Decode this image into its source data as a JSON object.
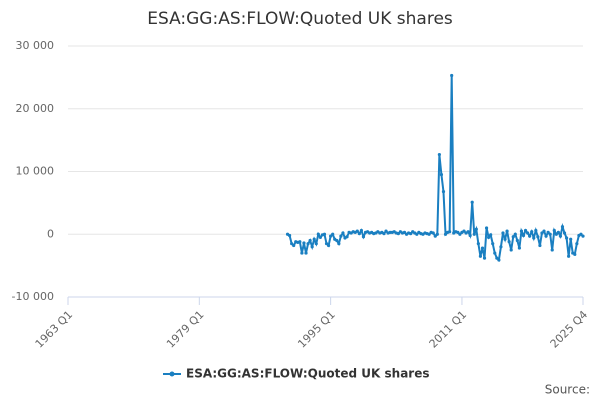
{
  "chart_data": {
    "type": "line",
    "title": "ESA:GG:AS:FLOW:Quoted UK shares",
    "source": "Source:",
    "xlim": [
      "1963 Q1",
      "2025 Q4"
    ],
    "xticks": [
      "1963 Q1",
      "1979 Q1",
      "1995 Q1",
      "2011 Q1",
      "2025 Q4"
    ],
    "ylim": [
      -10000,
      30000
    ],
    "yticks": [
      {
        "value": -10000,
        "label": "-10 000"
      },
      0,
      {
        "value": 10000,
        "label": "10 000"
      },
      {
        "value": 20000,
        "label": "20 000"
      },
      {
        "value": 30000,
        "label": "30 000"
      }
    ],
    "grid": true,
    "x": [
      "1989 Q4",
      "1990 Q1",
      "1990 Q2",
      "1990 Q3",
      "1990 Q4",
      "1991 Q1",
      "1991 Q2",
      "1991 Q3",
      "1991 Q4",
      "1992 Q1",
      "1992 Q2",
      "1992 Q3",
      "1992 Q4",
      "1993 Q1",
      "1993 Q2",
      "1993 Q3",
      "1993 Q4",
      "1994 Q1",
      "1994 Q2",
      "1994 Q3",
      "1994 Q4",
      "1995 Q1",
      "1995 Q2",
      "1995 Q3",
      "1995 Q4",
      "1996 Q1",
      "1996 Q2",
      "1996 Q3",
      "1996 Q4",
      "1997 Q1",
      "1997 Q2",
      "1997 Q3",
      "1997 Q4",
      "1998 Q1",
      "1998 Q2",
      "1998 Q3",
      "1998 Q4",
      "1999 Q1",
      "1999 Q2",
      "1999 Q3",
      "1999 Q4",
      "2000 Q1",
      "2000 Q2",
      "2000 Q3",
      "2000 Q4",
      "2001 Q1",
      "2001 Q2",
      "2001 Q3",
      "2001 Q4",
      "2002 Q1",
      "2002 Q2",
      "2002 Q3",
      "2002 Q4",
      "2003 Q1",
      "2003 Q2",
      "2003 Q3",
      "2003 Q4",
      "2004 Q1",
      "2004 Q2",
      "2004 Q3",
      "2004 Q4",
      "2005 Q1",
      "2005 Q2",
      "2005 Q3",
      "2005 Q4",
      "2006 Q1",
      "2006 Q2",
      "2006 Q3",
      "2006 Q4",
      "2007 Q1",
      "2007 Q2",
      "2007 Q3",
      "2007 Q4",
      "2008 Q1",
      "2008 Q2",
      "2008 Q3",
      "2008 Q4",
      "2009 Q1",
      "2009 Q2",
      "2009 Q3",
      "2009 Q4",
      "2010 Q1",
      "2010 Q2",
      "2010 Q3",
      "2010 Q4",
      "2011 Q1",
      "2011 Q2",
      "2011 Q3",
      "2011 Q4",
      "2012 Q1",
      "2012 Q2",
      "2012 Q3",
      "2012 Q4",
      "2013 Q1",
      "2013 Q2",
      "2013 Q3",
      "2013 Q4",
      "2014 Q1",
      "2014 Q2",
      "2014 Q3",
      "2014 Q4",
      "2015 Q1",
      "2015 Q2",
      "2015 Q3",
      "2015 Q4",
      "2016 Q1",
      "2016 Q2",
      "2016 Q3",
      "2016 Q4",
      "2017 Q1",
      "2017 Q2",
      "2017 Q3",
      "2017 Q4",
      "2018 Q1",
      "2018 Q2",
      "2018 Q3",
      "2018 Q4",
      "2019 Q1",
      "2019 Q2",
      "2019 Q3",
      "2019 Q4",
      "2020 Q1",
      "2020 Q2",
      "2020 Q3",
      "2020 Q4",
      "2021 Q1",
      "2021 Q2",
      "2021 Q3",
      "2021 Q4",
      "2022 Q1",
      "2022 Q2",
      "2022 Q3",
      "2022 Q4",
      "2023 Q1",
      "2023 Q2",
      "2023 Q3",
      "2023 Q4",
      "2024 Q1",
      "2024 Q2",
      "2024 Q3",
      "2024 Q4",
      "2025 Q1",
      "2025 Q2",
      "2025 Q3",
      "2025 Q4"
    ],
    "series": [
      {
        "name": "ESA:GG:AS:FLOW:Quoted UK shares",
        "color": "#1a7fc1",
        "values": [
          0,
          -200,
          -1500,
          -1800,
          -1200,
          -1300,
          -1200,
          -3000,
          -1400,
          -3000,
          -1500,
          -1000,
          -2000,
          -800,
          -1500,
          0,
          -500,
          -100,
          0,
          -1500,
          -1800,
          -300,
          0,
          -800,
          -1000,
          -1500,
          -300,
          200,
          -600,
          -400,
          300,
          200,
          400,
          300,
          500,
          100,
          600,
          -400,
          300,
          400,
          200,
          300,
          100,
          200,
          400,
          200,
          300,
          100,
          500,
          200,
          300,
          300,
          400,
          200,
          100,
          400,
          200,
          300,
          0,
          200,
          100,
          400,
          200,
          0,
          300,
          100,
          0,
          200,
          100,
          0,
          300,
          200,
          -300,
          0,
          12700,
          9500,
          6800,
          0,
          300,
          400,
          25300,
          200,
          400,
          300,
          0,
          300,
          500,
          200,
          400,
          -200,
          5100,
          0,
          800,
          -1500,
          -3500,
          -2200,
          -3800,
          1000,
          -500,
          -100,
          -1500,
          -3000,
          -3800,
          -4100,
          -2000,
          200,
          -800,
          500,
          -1200,
          -2500,
          -400,
          0,
          -1000,
          -2200,
          500,
          -200,
          600,
          200,
          -300,
          400,
          -600,
          600,
          -400,
          -1800,
          200,
          500,
          -300,
          300,
          0,
          -2500,
          600,
          0,
          300,
          -300,
          1200,
          200,
          -600,
          -3500,
          -800,
          -3000,
          -3200,
          -1500,
          -200,
          0,
          -300
        ]
      }
    ]
  }
}
